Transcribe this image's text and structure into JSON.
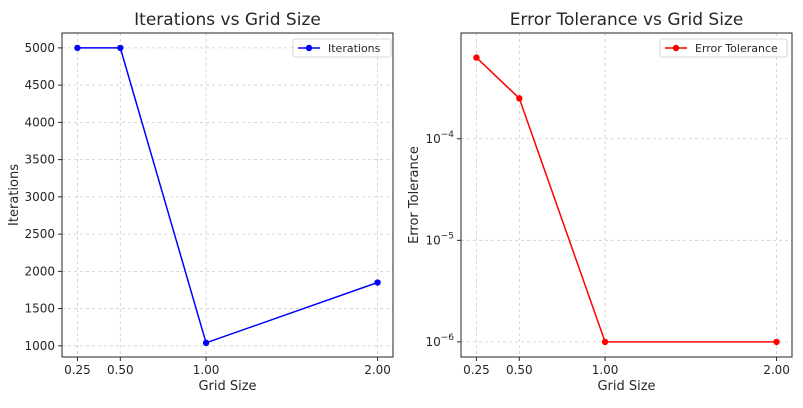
{
  "chart_data": [
    {
      "type": "line",
      "title": "Iterations vs Grid Size",
      "xlabel": "Grid Size",
      "ylabel": "Iterations",
      "x": [
        0.25,
        0.5,
        1.0,
        2.0
      ],
      "xticks": [
        0.25,
        0.5,
        1.0,
        2.0
      ],
      "xtick_labels": [
        "0.25",
        "0.50",
        "1.00",
        "2.00"
      ],
      "yticks": [
        1000,
        1500,
        2000,
        2500,
        3000,
        3500,
        4000,
        4500,
        5000
      ],
      "ytick_labels": [
        "1000",
        "1500",
        "2000",
        "2500",
        "3000",
        "3500",
        "4000",
        "4500",
        "5000"
      ],
      "xlim": [
        0.16,
        2.09
      ],
      "ylim": [
        850,
        5200
      ],
      "yscale": "linear",
      "grid": true,
      "legend_position": "top-right",
      "series": [
        {
          "name": "Iterations",
          "color": "#0000ff",
          "values": [
            5000,
            5000,
            1040,
            1850
          ]
        }
      ]
    },
    {
      "type": "line",
      "title": "Error Tolerance vs Grid Size",
      "xlabel": "Grid Size",
      "ylabel": "Error Tolerance",
      "x": [
        0.25,
        0.5,
        1.0,
        2.0
      ],
      "xticks": [
        0.25,
        0.5,
        1.0,
        2.0
      ],
      "xtick_labels": [
        "0.25",
        "0.50",
        "1.00",
        "2.00"
      ],
      "yticks": [
        1e-06,
        1e-05,
        0.0001
      ],
      "ytick_labels": [
        {
          "base": "10",
          "exp": "−6"
        },
        {
          "base": "10",
          "exp": "−5"
        },
        {
          "base": "10",
          "exp": "−4"
        }
      ],
      "xlim": [
        0.16,
        2.09
      ],
      "ylim": [
        7.1e-07,
        0.0011
      ],
      "yscale": "log",
      "grid": true,
      "legend_position": "top-right",
      "series": [
        {
          "name": "Error Tolerance",
          "color": "#ff0000",
          "values": [
            0.00063,
            0.00025,
            1e-06,
            1e-06
          ]
        }
      ]
    }
  ]
}
